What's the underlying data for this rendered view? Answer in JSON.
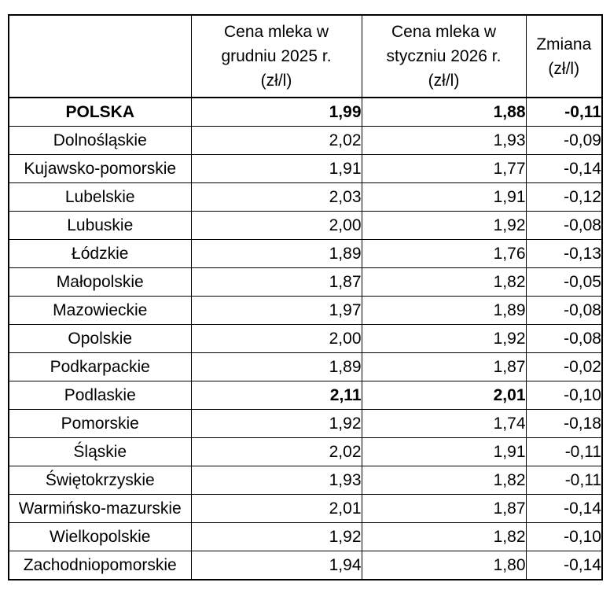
{
  "colors": {
    "border": "#000000",
    "text": "#000000",
    "background": "#ffffff"
  },
  "header": {
    "corner_label": "",
    "dec_2025_lines": [
      "Cena mleka w",
      "grudniu 2025 r.",
      "(zł/l)"
    ],
    "jan_2026_lines": [
      "Cena mleka w",
      "styczniu 2026 r.",
      "(zł/l)"
    ],
    "change_lines": [
      "Zmiana",
      "(zł/l)"
    ]
  },
  "chart_data": {
    "type": "table",
    "columns": [
      "",
      "Cena mleka w grudniu 2025 r. (zł/l)",
      "Cena mleka w styczniu 2026 r. (zł/l)",
      "Zmiana (zł/l)"
    ],
    "rows": [
      {
        "region": "POLSKA",
        "dec_2025": "1,99",
        "jan_2026": "1,88",
        "change": "-0,11",
        "emphasis": "all"
      },
      {
        "region": "Dolnośląskie",
        "dec_2025": "2,02",
        "jan_2026": "1,93",
        "change": "-0,09",
        "emphasis": "none"
      },
      {
        "region": "Kujawsko-pomorskie",
        "dec_2025": "1,91",
        "jan_2026": "1,77",
        "change": "-0,14",
        "emphasis": "none"
      },
      {
        "region": "Lubelskie",
        "dec_2025": "2,03",
        "jan_2026": "1,91",
        "change": "-0,12",
        "emphasis": "none"
      },
      {
        "region": "Lubuskie",
        "dec_2025": "2,00",
        "jan_2026": "1,92",
        "change": "-0,08",
        "emphasis": "none"
      },
      {
        "region": "Łódzkie",
        "dec_2025": "1,89",
        "jan_2026": "1,76",
        "change": "-0,13",
        "emphasis": "none"
      },
      {
        "region": "Małopolskie",
        "dec_2025": "1,87",
        "jan_2026": "1,82",
        "change": "-0,05",
        "emphasis": "none"
      },
      {
        "region": "Mazowieckie",
        "dec_2025": "1,97",
        "jan_2026": "1,89",
        "change": "-0,08",
        "emphasis": "none"
      },
      {
        "region": "Opolskie",
        "dec_2025": "2,00",
        "jan_2026": "1,92",
        "change": "-0,08",
        "emphasis": "none"
      },
      {
        "region": "Podkarpackie",
        "dec_2025": "1,89",
        "jan_2026": "1,87",
        "change": "-0,02",
        "emphasis": "none"
      },
      {
        "region": "Podlaskie",
        "dec_2025": "2,11",
        "jan_2026": "2,01",
        "change": "-0,10",
        "emphasis": "prices"
      },
      {
        "region": "Pomorskie",
        "dec_2025": "1,92",
        "jan_2026": "1,74",
        "change": "-0,18",
        "emphasis": "none"
      },
      {
        "region": "Śląskie",
        "dec_2025": "2,02",
        "jan_2026": "1,91",
        "change": "-0,11",
        "emphasis": "none"
      },
      {
        "region": "Świętokrzyskie",
        "dec_2025": "1,93",
        "jan_2026": "1,82",
        "change": "-0,11",
        "emphasis": "none"
      },
      {
        "region": "Warmińsko-mazurskie",
        "dec_2025": "2,01",
        "jan_2026": "1,87",
        "change": "-0,14",
        "emphasis": "none"
      },
      {
        "region": "Wielkopolskie",
        "dec_2025": "1,92",
        "jan_2026": "1,82",
        "change": "-0,10",
        "emphasis": "none"
      },
      {
        "region": "Zachodniopomorskie",
        "dec_2025": "1,94",
        "jan_2026": "1,80",
        "change": "-0,14",
        "emphasis": "none"
      }
    ]
  }
}
